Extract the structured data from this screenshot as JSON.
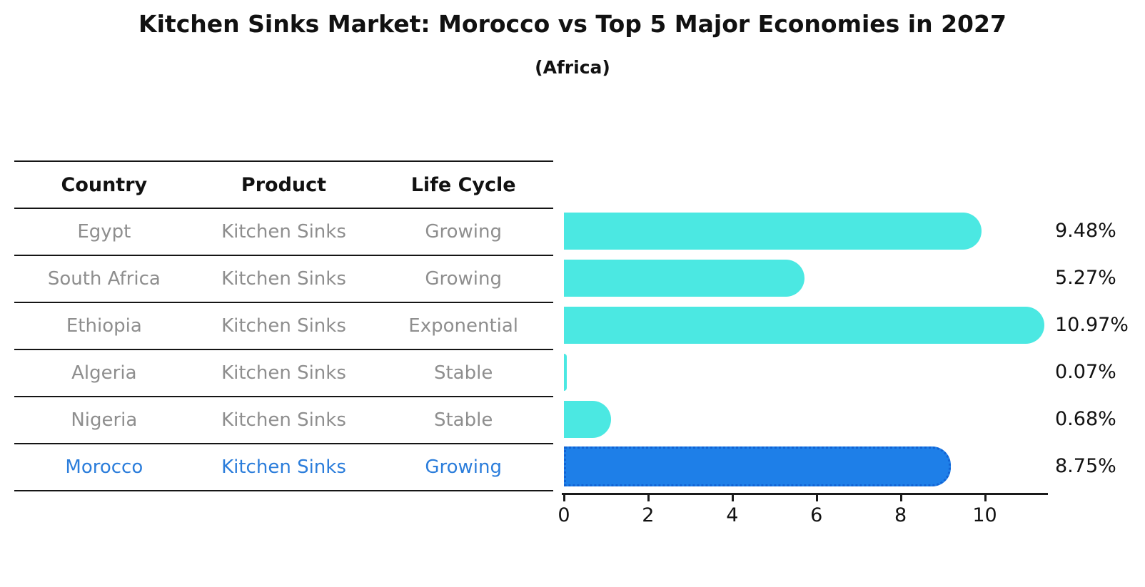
{
  "title": "Kitchen Sinks Market: Morocco vs Top 5 Major Economies in 2027",
  "subtitle": "(Africa)",
  "table": {
    "headers": [
      "Country",
      "Product",
      "Life Cycle"
    ],
    "rows": [
      {
        "country": "Egypt",
        "product": "Kitchen Sinks",
        "life_cycle": "Growing"
      },
      {
        "country": "South Africa",
        "product": "Kitchen Sinks",
        "life_cycle": "Growing"
      },
      {
        "country": "Ethiopia",
        "product": "Kitchen Sinks",
        "life_cycle": "Exponential"
      },
      {
        "country": "Algeria",
        "product": "Kitchen Sinks",
        "life_cycle": "Stable"
      },
      {
        "country": "Nigeria",
        "product": "Kitchen Sinks",
        "life_cycle": "Stable"
      },
      {
        "country": "Morocco",
        "product": "Kitchen Sinks",
        "life_cycle": "Growing"
      }
    ]
  },
  "chart_data": {
    "type": "bar",
    "orientation": "horizontal",
    "title": "Kitchen Sinks Market: Morocco vs Top 5 Major Economies in 2027",
    "subtitle": "(Africa)",
    "categories": [
      "Egypt",
      "South Africa",
      "Ethiopia",
      "Algeria",
      "Nigeria",
      "Morocco"
    ],
    "values": [
      9.48,
      5.27,
      10.97,
      0.07,
      0.68,
      8.75
    ],
    "value_labels": [
      "9.48%",
      "5.27%",
      "10.97%",
      "0.07%",
      "0.68%",
      "8.75%"
    ],
    "xticks": [
      "0",
      "2",
      "4",
      "6",
      "8",
      "10"
    ],
    "xlim": [
      0,
      11.45
    ],
    "highlight_index": 5,
    "grid": false,
    "legend": "none",
    "xlabel": "",
    "ylabel": ""
  },
  "colors": {
    "bar": "#4be8e2",
    "highlight_bar": "#1e7fe8",
    "highlight_border": "#1263d4",
    "highlight_text": "#2b7ddb",
    "table_text": "#8e8e8e",
    "header_text": "#111111",
    "axis": "#1a1a1a",
    "value_text": "#111111",
    "background": "#ffffff"
  }
}
